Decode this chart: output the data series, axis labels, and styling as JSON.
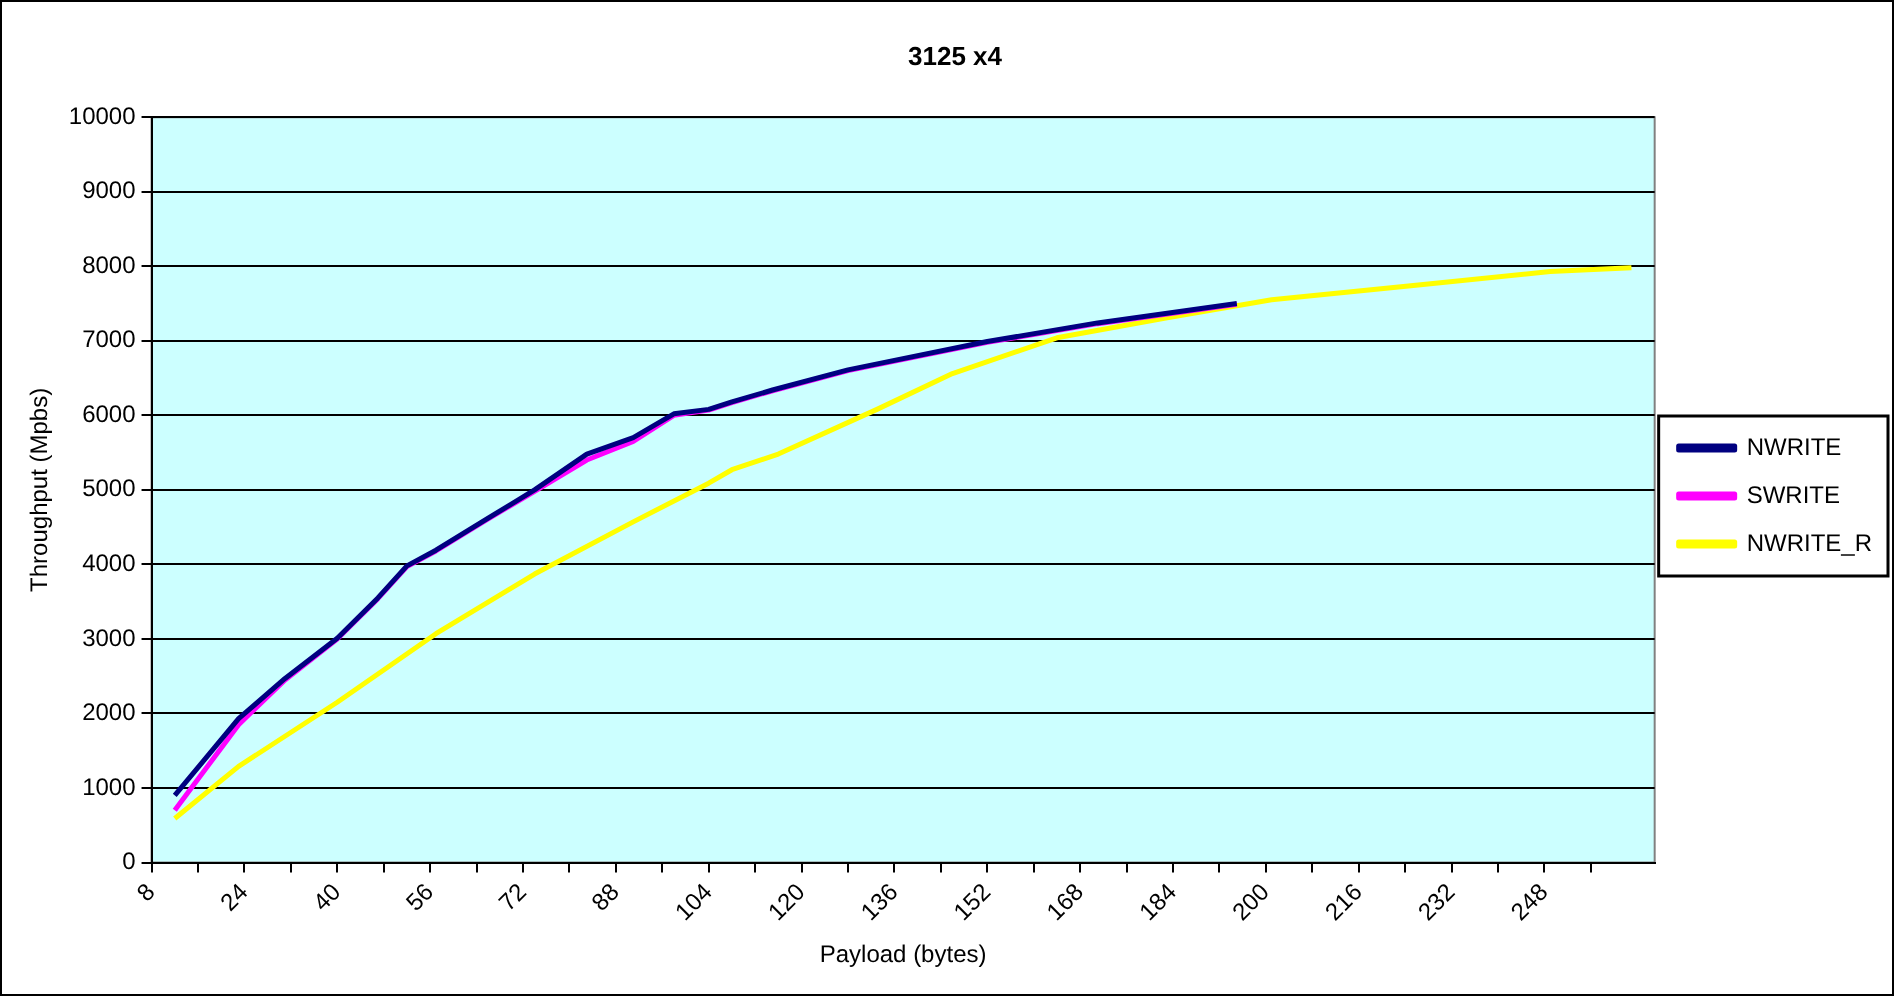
{
  "chart_data": {
    "type": "line",
    "title": "3125 x4",
    "xlabel": "Payload (bytes)",
    "ylabel": "Throughput (Mpbs)",
    "xlim": [
      8,
      267
    ],
    "xticks": [
      8,
      {
        "value": 16,
        "label": null
      },
      24,
      {
        "value": 32,
        "label": null
      },
      40,
      {
        "value": 48,
        "label": null
      },
      56,
      {
        "value": 64,
        "label": null
      },
      72,
      {
        "value": 80,
        "label": null
      },
      88,
      {
        "value": 96,
        "label": null
      },
      104,
      {
        "value": 112,
        "label": null
      },
      120,
      {
        "value": 128,
        "label": null
      },
      136,
      {
        "value": 144,
        "label": null
      },
      152,
      {
        "value": 160,
        "label": null
      },
      168,
      {
        "value": 176,
        "label": null
      },
      184,
      {
        "value": 192,
        "label": null
      },
      200,
      {
        "value": 208,
        "label": null
      },
      216,
      {
        "value": 224,
        "label": null
      },
      232,
      {
        "value": 240,
        "label": null
      },
      248,
      {
        "value": 256,
        "label": null
      }
    ],
    "ylim": [
      0,
      10000
    ],
    "yticks": [
      0,
      1000,
      2000,
      3000,
      4000,
      5000,
      6000,
      7000,
      8000,
      9000,
      10000
    ],
    "grid": "y",
    "legend": "right",
    "marker": "none",
    "line_style": "solid",
    "series": [
      {
        "name": "NWRITE",
        "color": "#000080",
        "x": [
          12,
          23,
          31,
          40,
          47,
          52,
          57,
          66,
          74,
          83,
          91,
          98,
          104,
          108,
          115,
          128,
          152,
          171,
          195
        ],
        "values": [
          900,
          1930,
          2470,
          3010,
          3550,
          3980,
          4190,
          4620,
          5000,
          5480,
          5700,
          6020,
          6080,
          6180,
          6340,
          6610,
          6990,
          7240,
          7500
        ]
      },
      {
        "name": "SWRITE",
        "color": "#ff00ff",
        "x": [
          12,
          23,
          31,
          40,
          47,
          52,
          57,
          66,
          74,
          83,
          91,
          98,
          104,
          108,
          115,
          128,
          152,
          171,
          195
        ],
        "values": [
          700,
          1850,
          2450,
          3000,
          3540,
          3970,
          4180,
          4610,
          4980,
          5400,
          5650,
          6000,
          6070,
          6170,
          6330,
          6600,
          6980,
          7230,
          7490
        ]
      },
      {
        "name": "NWRITE_R",
        "color": "#ffff00",
        "x": [
          12,
          23,
          40,
          57,
          74,
          91,
          104,
          108,
          116,
          133,
          146,
          164,
          183,
          201,
          225,
          249,
          263
        ],
        "values": [
          590,
          1290,
          2150,
          3070,
          3870,
          4570,
          5090,
          5270,
          5480,
          6080,
          6560,
          7040,
          7310,
          7550,
          7740,
          7930,
          7980
        ]
      }
    ]
  }
}
